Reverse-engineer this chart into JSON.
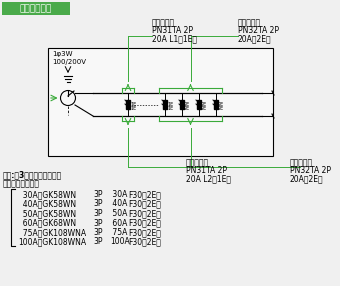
{
  "title": "結線図（例）",
  "title_bg": "#4aaa4a",
  "title_color": "#ffffff",
  "bg_color": "#f0f0f0",
  "box_color": "#000000",
  "green_color": "#3aaa3a",
  "label_top_left": [
    "プチスリム",
    "PN31TA 2P",
    "20A L1（1E）"
  ],
  "label_top_right": [
    "プチスリム",
    "PN32TA 2P",
    "20A（2E）"
  ],
  "label_bottom_left": [
    "プチスリム",
    "PN31TA 2P",
    "20A L2（1E）"
  ],
  "label_bottom_right": [
    "プチスリム",
    "PN32TA 2P",
    "20A（2E）"
  ],
  "main_label1": "主幹:単3中性線欠相保護付",
  "main_label2": "　　漏電ブレーカ",
  "source_label1": "1φ3W",
  "source_label2": "100/200V",
  "table_rows": [
    [
      "  30A：GK58WN",
      "3P",
      " 30A",
      "F30（2E）"
    ],
    [
      "  40A：GK58WN",
      "3P",
      " 40A",
      "F30（2E）"
    ],
    [
      "  50A：GK58WN",
      "3P",
      " 50A",
      "F30（2E）"
    ],
    [
      "  60A：GK68WN",
      "3P",
      " 60A",
      "F30（2E）"
    ],
    [
      "  75A：GK108WNA",
      "3P",
      " 75A",
      "F30（2E）"
    ],
    [
      "100A：GK108WNA",
      "3P",
      "100A",
      "F30（2E）"
    ]
  ]
}
